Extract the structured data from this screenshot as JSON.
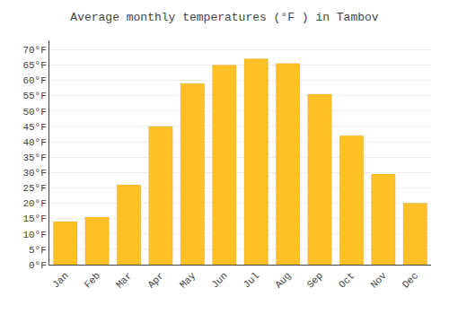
{
  "chart_data": {
    "type": "bar",
    "title": "Average monthly temperatures (°F ) in Tambov",
    "categories": [
      "Jan",
      "Feb",
      "Mar",
      "Apr",
      "May",
      "Jun",
      "Jul",
      "Aug",
      "Sep",
      "Oct",
      "Nov",
      "Dec"
    ],
    "values": [
      14,
      15.5,
      26,
      45,
      59,
      65,
      67,
      65.5,
      55.5,
      42,
      29.5,
      20
    ],
    "color": "#FFC125",
    "ylim": [
      0,
      73
    ],
    "yticks": [
      {
        "value": 0,
        "label": "0°F"
      },
      {
        "value": 5,
        "label": "5°F"
      },
      {
        "value": 10,
        "label": "10°F"
      },
      {
        "value": 15,
        "label": "15°F"
      },
      {
        "value": 20,
        "label": "20°F"
      },
      {
        "value": 25,
        "label": "25°F"
      },
      {
        "value": 30,
        "label": "30°F"
      },
      {
        "value": 35,
        "label": "35°F"
      },
      {
        "value": 40,
        "label": "40°F"
      },
      {
        "value": 45,
        "label": "45°F"
      },
      {
        "value": 50,
        "label": "50°F"
      },
      {
        "value": 55,
        "label": "55°F"
      },
      {
        "value": 60,
        "label": "60°F"
      },
      {
        "value": 65,
        "label": "65°F"
      },
      {
        "value": 70,
        "label": "70°F"
      }
    ],
    "grid": true
  }
}
